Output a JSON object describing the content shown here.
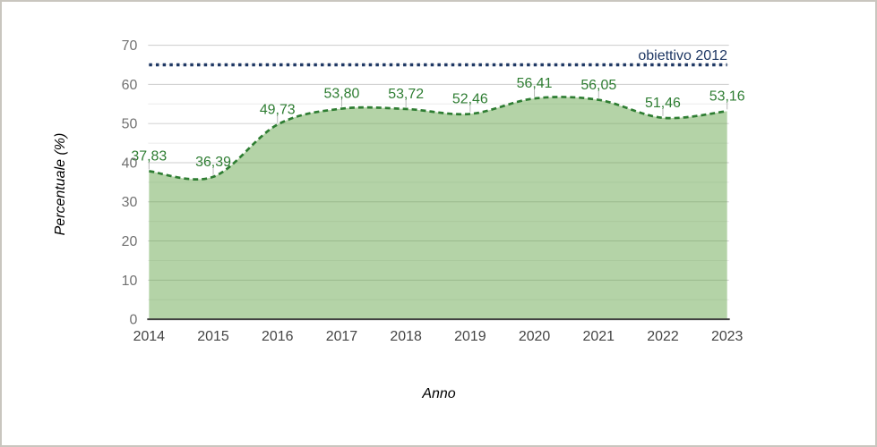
{
  "window": {
    "background": "#ffffff",
    "border_color": "#c9c6bf"
  },
  "chart_data": {
    "type": "area",
    "title": "",
    "xlabel": "Anno",
    "ylabel": "Percentuale (%)",
    "categories": [
      "2014",
      "2015",
      "2016",
      "2017",
      "2018",
      "2019",
      "2020",
      "2021",
      "2022",
      "2023"
    ],
    "series": [
      {
        "name": "percentuale",
        "values": [
          37.83,
          36.39,
          49.73,
          53.8,
          53.72,
          52.46,
          56.41,
          56.05,
          51.46,
          53.16
        ],
        "labels": [
          "37,83",
          "36,39",
          "49,73",
          "53,80",
          "53,72",
          "52,46",
          "56,41",
          "56,05",
          "51,46",
          "53,16"
        ],
        "line_style": "dashed",
        "smooth": true
      }
    ],
    "reference_line": {
      "label": "obiettivo 2012",
      "value": 65,
      "style": "dotted"
    },
    "ylim": [
      0,
      70
    ],
    "yticks": [
      0,
      10,
      20,
      30,
      40,
      50,
      60,
      70
    ],
    "minor_tick_step": 5,
    "grid": true,
    "legend_position": "none",
    "decimal_separator": ",",
    "colors": {
      "series_line": "#2e7d32",
      "series_fill": "#6aa84f",
      "series_fill_opacity": 0.5,
      "data_label": "#2e7d32",
      "reference": "#1f3864",
      "grid_major": "#cccccc",
      "grid_minor": "#ebebeb",
      "axis_line": "#3f3f3f",
      "ytick_label": "#717171",
      "xtick_label": "#444444",
      "leader_stem": "#b7b7b7",
      "axis_title": "#000000"
    }
  }
}
